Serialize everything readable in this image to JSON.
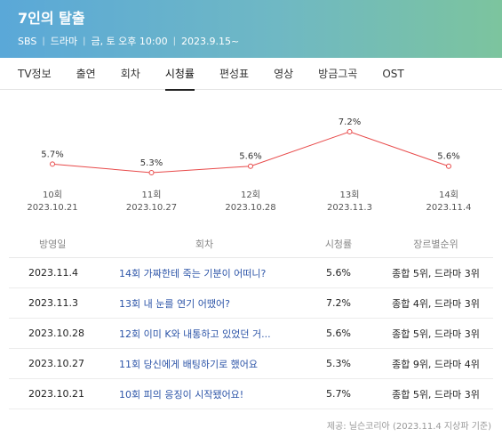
{
  "header": {
    "title": "7인의 탈출",
    "broadcaster": "SBS",
    "genre": "드라마",
    "schedule": "금, 토 오후 10:00",
    "start_date": "2023.9.15~"
  },
  "tabs": [
    {
      "label": "TV정보",
      "active": false
    },
    {
      "label": "출연",
      "active": false
    },
    {
      "label": "회차",
      "active": false
    },
    {
      "label": "시청률",
      "active": true
    },
    {
      "label": "편성표",
      "active": false
    },
    {
      "label": "영상",
      "active": false
    },
    {
      "label": "방금그곡",
      "active": false
    },
    {
      "label": "OST",
      "active": false
    }
  ],
  "chart_data": {
    "type": "line",
    "categories": [
      "10회",
      "11회",
      "12회",
      "13회",
      "14회"
    ],
    "dates": [
      "2023.10.21",
      "2023.10.27",
      "2023.10.28",
      "2023.11.3",
      "2023.11.4"
    ],
    "values": [
      5.7,
      5.3,
      5.6,
      7.2,
      5.6
    ],
    "value_labels": [
      "5.7%",
      "5.3%",
      "5.6%",
      "7.2%",
      "5.6%"
    ],
    "line_color": "#e84a4a",
    "grid": false,
    "legend": "none"
  },
  "table": {
    "headers": {
      "date": "방영일",
      "episode": "회차",
      "rating": "시청률",
      "rank": "장르별순위"
    },
    "rows": [
      {
        "date": "2023.11.4",
        "episode": "14회 가짜한테 죽는 기분이 어떠니?",
        "rating": "5.6%",
        "rank": "종합 5위, 드라마 3위"
      },
      {
        "date": "2023.11.3",
        "episode": "13회 내 눈를 연기 어땠어?",
        "rating": "7.2%",
        "rank": "종합 4위, 드라마 3위"
      },
      {
        "date": "2023.10.28",
        "episode": "12회 이미 K와 내통하고 있었던 거...",
        "rating": "5.6%",
        "rank": "종합 5위, 드라마 3위"
      },
      {
        "date": "2023.10.27",
        "episode": "11회 당신에게 배팅하기로 했어요",
        "rating": "5.3%",
        "rank": "종합 9위, 드라마 4위"
      },
      {
        "date": "2023.10.21",
        "episode": "10회 피의 응징이 시작됐어요!",
        "rating": "5.7%",
        "rank": "종합 5위, 드라마 3위"
      }
    ]
  },
  "source": "제공: 닐슨코리아 (2023.11.4 지상파 기준)"
}
